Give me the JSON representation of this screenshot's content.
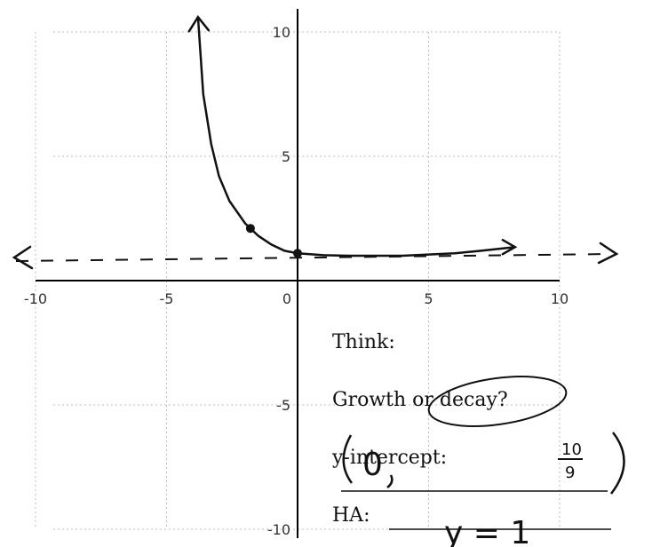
{
  "chart_data": {
    "type": "line",
    "xlim": [
      -10,
      10
    ],
    "ylim": [
      -10,
      10
    ],
    "grid": true,
    "x_ticks": [
      -10,
      -5,
      0,
      5,
      10
    ],
    "y_ticks": [
      10,
      5,
      -5,
      -10
    ],
    "asymptote_y": 1,
    "series": [
      {
        "x": [
          -3.8,
          -3.6,
          -3.3,
          -3.0,
          -2.6,
          -2.0,
          -1.5,
          -1.0,
          -0.5,
          0,
          1,
          2,
          3,
          4,
          5,
          6,
          7,
          8.3
        ],
        "y": [
          10.6,
          7.5,
          5.5,
          4.2,
          3.2,
          2.3,
          1.8,
          1.45,
          1.2,
          1.1,
          1.02,
          1.0,
          1.0,
          1.0,
          1.05,
          1.1,
          1.2,
          1.35
        ]
      }
    ],
    "marked_points": [
      {
        "x": -1.8,
        "y": 2.1
      },
      {
        "x": 0,
        "y": 1.1
      }
    ]
  },
  "worksheet": {
    "think_label": "Think:",
    "question_label": "Growth or decay?",
    "intercept_label": "y-intercept:",
    "ha_label": "HA:"
  },
  "handwriting": {
    "intercept_answer": "(0, 10/9)",
    "intercept_x": "0",
    "intercept_num": "10",
    "intercept_den": "9",
    "ha_answer": "y = 1"
  }
}
